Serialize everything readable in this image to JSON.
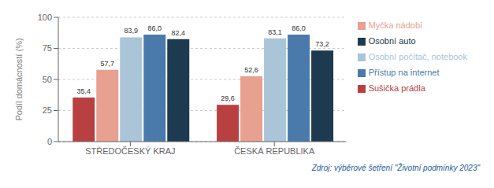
{
  "chart_data": {
    "type": "bar",
    "categories": [
      "STŘEDOČESKÝ KRAJ",
      "ČESKÁ REPUBLIKA"
    ],
    "series": [
      {
        "name": "Sušička prádla",
        "color": "#b94040",
        "values": [
          35.4,
          29.6
        ],
        "value_labels": [
          "35,4",
          "29,6"
        ]
      },
      {
        "name": "Myčka nádobí",
        "color": "#e8a090",
        "values": [
          57.7,
          52.6
        ],
        "value_labels": [
          "57,7",
          "52,6"
        ]
      },
      {
        "name": "Osobní počítač, notebook",
        "color": "#aac4d8",
        "values": [
          83.9,
          83.1
        ],
        "value_labels": [
          "83,9",
          "83,1"
        ]
      },
      {
        "name": "Přístup na internet",
        "color": "#4a7aab",
        "values": [
          86.0,
          86.0
        ],
        "value_labels": [
          "86,0",
          "86,0"
        ]
      },
      {
        "name": "Osobní auto",
        "color": "#1e3a50",
        "values": [
          82.4,
          73.2
        ],
        "value_labels": [
          "82,4",
          "73,2"
        ]
      }
    ],
    "ylabel": "Podíl domácností (%)",
    "ylim": [
      0,
      100
    ],
    "yticks": [
      0,
      25,
      50,
      75,
      100
    ],
    "grid": true,
    "legend": "right",
    "data_labels": true,
    "annotations": [
      {
        "text": "Zdroj: výběrové šetření \"Životní podmínky 2023\"",
        "color": "#2060a0"
      }
    ]
  }
}
